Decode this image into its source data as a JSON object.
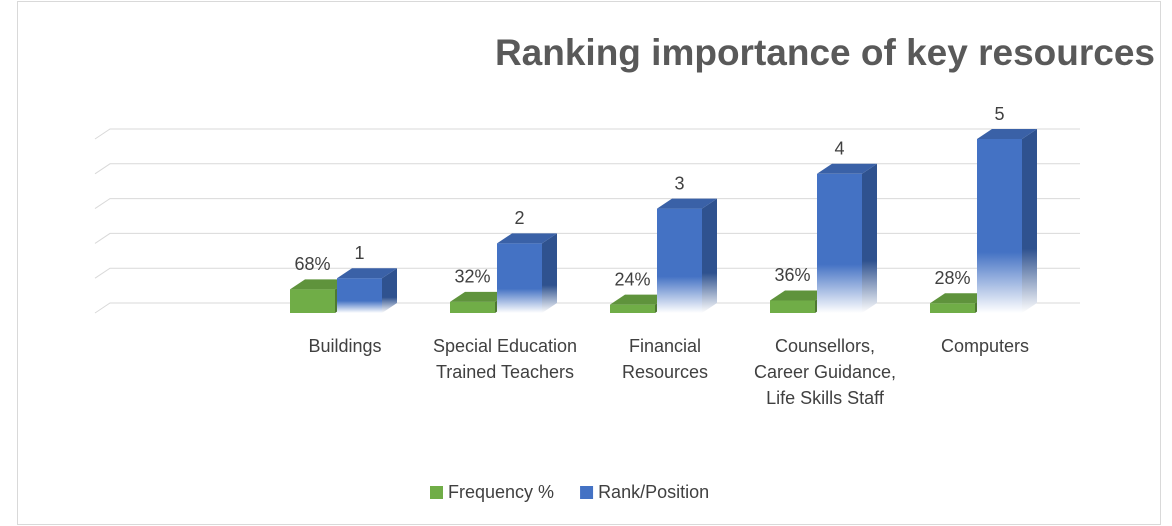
{
  "chart_data": {
    "type": "bar3d",
    "title": "Ranking importance of key resources",
    "categories": [
      "Buildings",
      "Special Education Trained Teachers",
      "Financial Resources",
      "Counsellors, Career Guidance, Life Skills Staff",
      "Computers"
    ],
    "series": [
      {
        "name": "Frequency %",
        "color": "#70ad47",
        "values": [
          0.68,
          0.32,
          0.24,
          0.36,
          0.28
        ],
        "value_labels": [
          "68%",
          "32%",
          "24%",
          "36%",
          "28%"
        ]
      },
      {
        "name": "Rank/Position",
        "color": "#4472c4",
        "values": [
          1,
          2,
          3,
          4,
          5
        ]
      }
    ],
    "ylim": [
      0,
      5
    ],
    "yticks": [
      0,
      1,
      2,
      3,
      4,
      5
    ],
    "grid": true,
    "legend": "bottom"
  }
}
